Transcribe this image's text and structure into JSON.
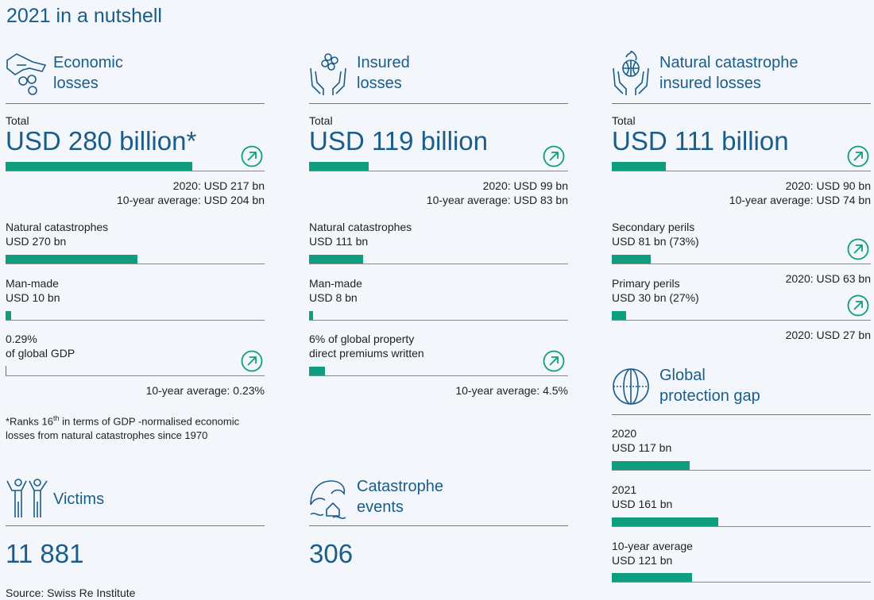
{
  "page": {
    "title": "2021 in a nutshell"
  },
  "colors": {
    "title": "#1a5c8a",
    "bar": "#0f9d7f",
    "arrow": "#0f9d7f"
  },
  "economic": {
    "label_line1": "Economic",
    "label_line2": "losses",
    "total_label": "Total",
    "total_value": "USD 280 billion*",
    "total_fraction": 0.72,
    "prev": "2020: USD 217 bn",
    "avg": "10-year average: USD 204 bn",
    "nat_label": "Natural catastrophes",
    "nat_value": "USD 270 bn",
    "nat_fraction": 0.51,
    "man_label": "Man-made",
    "man_value": "USD 10 bn",
    "man_fraction": 0.02,
    "gdp_line1": "0.29%",
    "gdp_line2": "of global GDP",
    "gdp_avg": "10-year average: 0.23%",
    "note_pre": "*Ranks 16",
    "note_sup": "th",
    "note_post": " in terms of GDP -normalised economic",
    "note_line2": "losses from natural catastrophes since 1970"
  },
  "insured": {
    "label_line1": "Insured",
    "label_line2": "losses",
    "total_label": "Total",
    "total_value": "USD 119 billion",
    "total_fraction": 0.23,
    "prev": "2020: USD 99 bn",
    "avg": "10-year average: USD 83 bn",
    "nat_label": "Natural catastrophes",
    "nat_value": "USD 111 bn",
    "nat_fraction": 0.21,
    "man_label": "Man-made",
    "man_value": "USD 8 bn",
    "man_fraction": 0.015,
    "prem_line1": "6% of global property",
    "prem_line2": "direct premiums written",
    "prem_avg": "10-year average: 4.5%",
    "prem_fraction": 0.06
  },
  "natcat": {
    "label_line1": "Natural catastrophe",
    "label_line2": "insured losses",
    "total_label": "Total",
    "total_value": "USD 111 billion",
    "total_fraction": 0.21,
    "prev": "2020: USD 90 bn",
    "avg": "10-year average: USD 74 bn",
    "sec_label": "Secondary perils",
    "sec_value": "USD 81 bn (73%)",
    "sec_fraction": 0.15,
    "sec_prev": "2020: USD 63 bn",
    "pri_label": "Primary perils",
    "pri_value": "USD 30 bn (27%)",
    "pri_fraction": 0.055,
    "pri_prev": "2020: USD 27 bn"
  },
  "gap": {
    "label_line1": "Global",
    "label_line2": "protection gap",
    "y2020_label": "2020",
    "y2020_value": "USD 117 bn",
    "y2020_fraction": 0.3,
    "y2021_label": "2021",
    "y2021_value": "USD 161 bn",
    "y2021_fraction": 0.41,
    "avg_label": "10-year average",
    "avg_value": "USD 121 bn",
    "avg_fraction": 0.31
  },
  "victims": {
    "label": "Victims",
    "value": "11 881",
    "source": "Source: Swiss Re Institute"
  },
  "events": {
    "label_line1": "Catastrophe",
    "label_line2": "events",
    "value": "306"
  }
}
